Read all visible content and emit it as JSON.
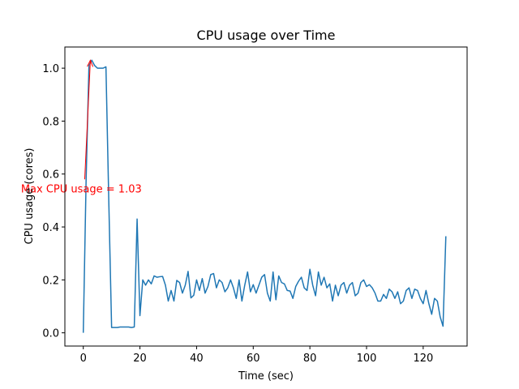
{
  "chart_data": {
    "type": "line",
    "title": "CPU usage over Time",
    "xlabel": "Time (sec)",
    "ylabel": "CPU usage (cores)",
    "xlim": [
      -6.5,
      135.5
    ],
    "ylim": [
      -0.05,
      1.08
    ],
    "xticks": [
      0,
      20,
      40,
      60,
      80,
      100,
      120
    ],
    "yticks": [
      0.0,
      0.2,
      0.4,
      0.6,
      0.8,
      1.0
    ],
    "ytick_labels": [
      "0.0",
      "0.2",
      "0.4",
      "0.6",
      "0.8",
      "1.0"
    ],
    "grid": false,
    "series": [
      {
        "color": "#1f77b4",
        "x": [
          0,
          1,
          2,
          3,
          4,
          5,
          6,
          7,
          8,
          9,
          10,
          11,
          12,
          13,
          14,
          15,
          16,
          17,
          18,
          19,
          20,
          21,
          22,
          23,
          24,
          25,
          26,
          27,
          28,
          29,
          30,
          31,
          32,
          33,
          34,
          35,
          36,
          37,
          38,
          39,
          40,
          41,
          42,
          43,
          44,
          45,
          46,
          47,
          48,
          49,
          50,
          51,
          52,
          53,
          54,
          55,
          56,
          57,
          58,
          59,
          60,
          61,
          62,
          63,
          64,
          65,
          66,
          67,
          68,
          69,
          70,
          71,
          72,
          73,
          74,
          75,
          76,
          77,
          78,
          79,
          80,
          81,
          82,
          83,
          84,
          85,
          86,
          87,
          88,
          89,
          90,
          91,
          92,
          93,
          94,
          95,
          96,
          97,
          98,
          99,
          100,
          101,
          102,
          103,
          104,
          105,
          106,
          107,
          108,
          109,
          110,
          111,
          112,
          113,
          114,
          115,
          116,
          117,
          118,
          119,
          120,
          121,
          122,
          123,
          124,
          125,
          126,
          127,
          128
        ],
        "y": [
          0.0,
          0.58,
          1.01,
          1.03,
          1.01,
          1.0,
          1.0,
          1.0,
          1.005,
          0.5,
          0.02,
          0.02,
          0.02,
          0.022,
          0.022,
          0.022,
          0.022,
          0.02,
          0.022,
          0.43,
          0.065,
          0.2,
          0.18,
          0.2,
          0.185,
          0.215,
          0.21,
          0.212,
          0.213,
          0.18,
          0.12,
          0.16,
          0.12,
          0.198,
          0.19,
          0.15,
          0.18,
          0.232,
          0.132,
          0.142,
          0.2,
          0.16,
          0.205,
          0.15,
          0.175,
          0.22,
          0.224,
          0.17,
          0.2,
          0.19,
          0.155,
          0.17,
          0.2,
          0.17,
          0.13,
          0.2,
          0.12,
          0.18,
          0.23,
          0.155,
          0.182,
          0.15,
          0.18,
          0.21,
          0.22,
          0.15,
          0.12,
          0.23,
          0.125,
          0.215,
          0.19,
          0.185,
          0.16,
          0.158,
          0.13,
          0.175,
          0.195,
          0.21,
          0.17,
          0.16,
          0.24,
          0.18,
          0.14,
          0.23,
          0.18,
          0.21,
          0.17,
          0.185,
          0.12,
          0.18,
          0.14,
          0.18,
          0.19,
          0.15,
          0.18,
          0.19,
          0.14,
          0.15,
          0.19,
          0.2,
          0.175,
          0.182,
          0.17,
          0.15,
          0.12,
          0.12,
          0.145,
          0.13,
          0.165,
          0.155,
          0.13,
          0.155,
          0.11,
          0.12,
          0.16,
          0.17,
          0.13,
          0.165,
          0.16,
          0.13,
          0.11,
          0.16,
          0.11,
          0.07,
          0.13,
          0.12,
          0.06,
          0.025,
          0.365
        ]
      }
    ],
    "annotation": {
      "text": "Max CPU usage = 1.03",
      "color": "#ff0000",
      "text_x": -22,
      "text_y": 0.53,
      "arrow_from_x": 0.5,
      "arrow_from_y": 0.58,
      "arrow_to_x": 2.5,
      "arrow_to_y": 1.03
    }
  }
}
